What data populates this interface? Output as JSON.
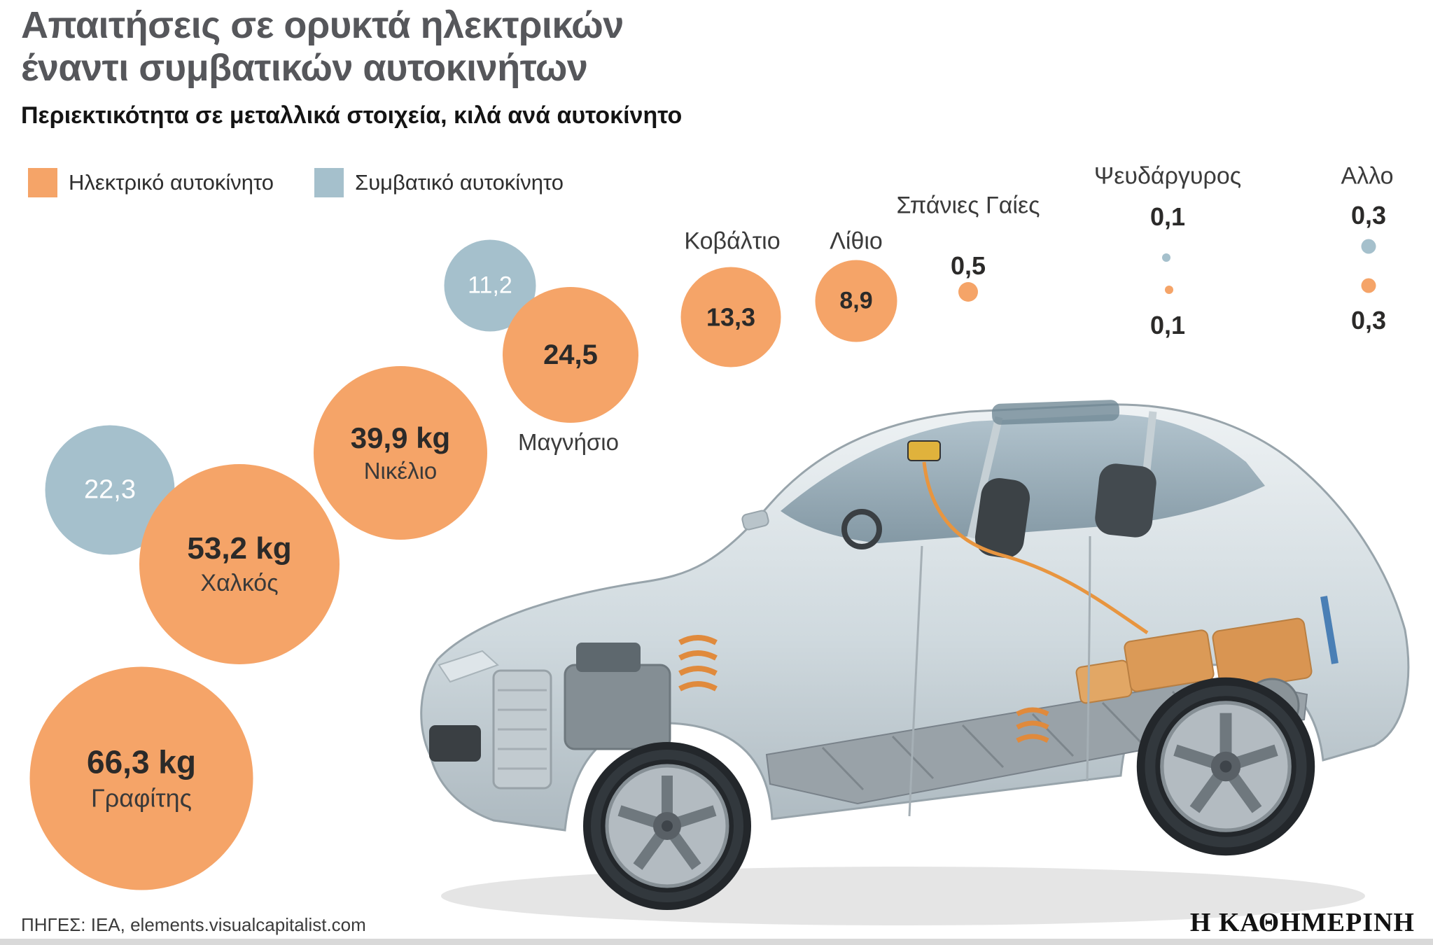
{
  "header": {
    "title_line1": "Απαιτήσεις σε ορυκτά ηλεκτρικών",
    "title_line2": "έναντι συμβατικών αυτοκινήτων",
    "subtitle": "Περιεκτικότητα σε μεταλλικά στοιχεία, κιλά ανά αυτοκίνητο"
  },
  "legend": {
    "electric_label": "Ηλεκτρικό αυτοκίνητο",
    "conventional_label": "Συμβατικό αυτοκίνητο"
  },
  "footer": {
    "sources": "ΠΗΓΕΣ: ΙΕΑ, elements.visualcapitalist.com",
    "brand": "Η ΚΑΘΗΜΕΡΙΝΗ"
  },
  "chart_data": {
    "type": "bubble",
    "title": "Απαιτήσεις σε ορυκτά ηλεκτρικών έναντι συμβατικών αυτοκινήτων",
    "subtitle": "Περιεκτικότητα σε μεταλλικά στοιχεία, κιλά ανά αυτοκίνητο",
    "unit": "kg ανά αυτοκίνητο",
    "legend_position": "top-left",
    "bubble_area_rule": "radius proportional to sqrt(value)",
    "series": [
      {
        "name": "Ηλεκτρικό αυτοκίνητο",
        "color": "#F5A468"
      },
      {
        "name": "Συμβατικό αυτοκίνητο",
        "color": "#A5C0CC"
      }
    ],
    "minerals": [
      {
        "name": "Γραφίτης",
        "electric": 66.3,
        "electric_display": "66,3 kg"
      },
      {
        "name": "Χαλκός",
        "electric": 53.2,
        "electric_display": "53,2 kg",
        "conventional": 22.3,
        "conventional_display": "22,3"
      },
      {
        "name": "Νικέλιο",
        "electric": 39.9,
        "electric_display": "39,9 kg"
      },
      {
        "name": "Μαγνήσιο",
        "electric": 24.5,
        "electric_display": "24,5",
        "conventional": 11.2,
        "conventional_display": "11,2"
      },
      {
        "name": "Κοβάλτιο",
        "electric": 13.3,
        "electric_display": "13,3"
      },
      {
        "name": "Λίθιο",
        "electric": 8.9,
        "electric_display": "8,9"
      },
      {
        "name": "Σπάνιες Γαίες",
        "electric": 0.5,
        "electric_display": "0,5"
      },
      {
        "name": "Ψευδάργυρος",
        "electric": 0.1,
        "electric_display": "0,1",
        "conventional": 0.1,
        "conventional_display": "0,1"
      },
      {
        "name": "Αλλο",
        "electric": 0.3,
        "electric_display": "0,3",
        "conventional": 0.3,
        "conventional_display": "0,3"
      }
    ]
  }
}
